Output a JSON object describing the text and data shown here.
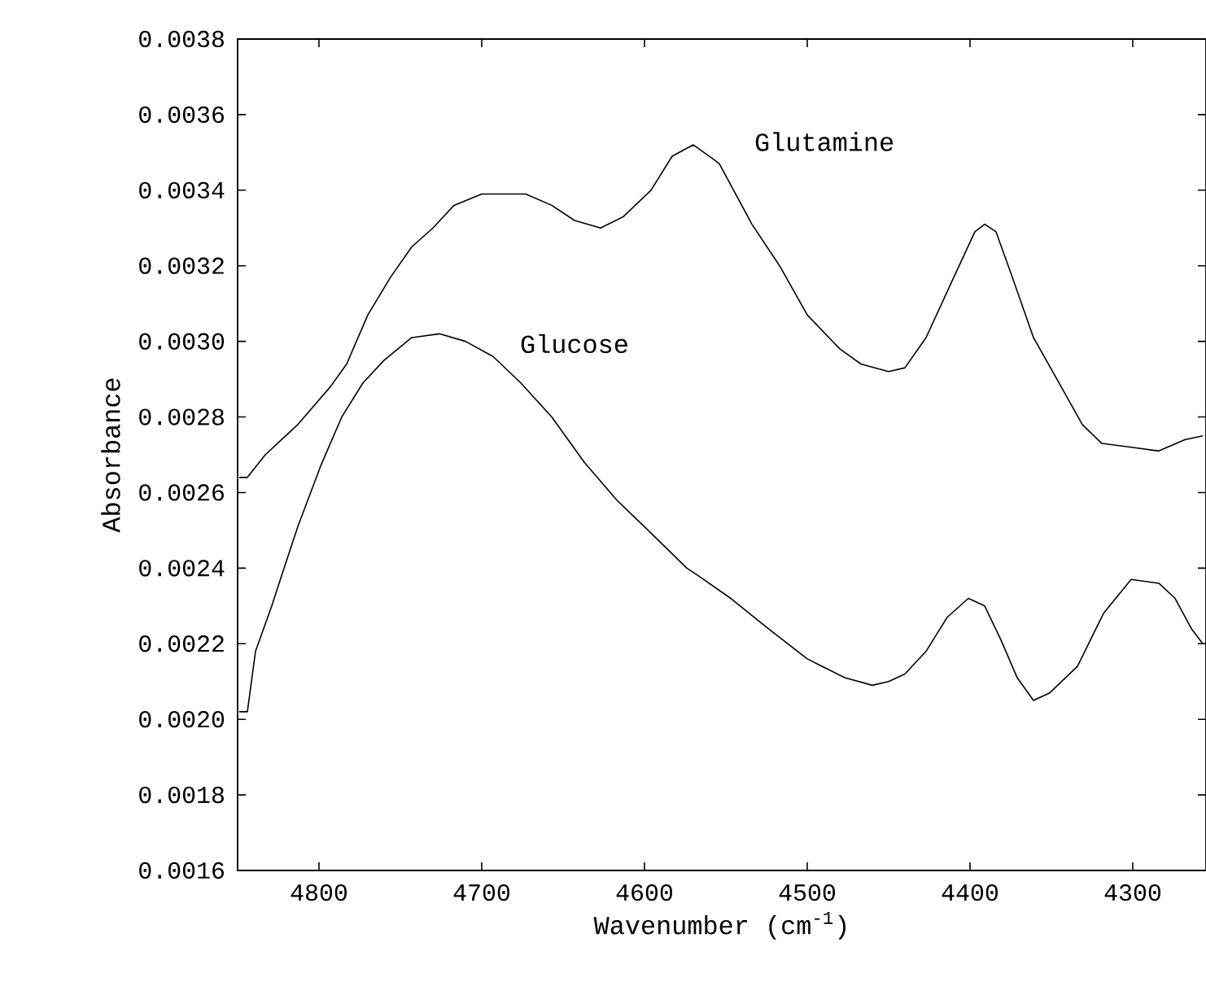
{
  "chart_data": {
    "type": "line",
    "xlabel": "Wavenumber (cm$^{-1}$)",
    "ylabel": "Absorbance",
    "xlim": [
      4850,
      4255
    ],
    "ylim": [
      0.0016,
      0.0038
    ],
    "xticks": [
      4800,
      4700,
      4600,
      4500,
      4400,
      4300
    ],
    "yticks": [
      0.0016,
      0.0018,
      {
        "value": 0.002,
        "label": "0.0020"
      },
      0.0022,
      0.0024,
      0.0026,
      0.0028,
      {
        "value": 0.003,
        "label": "0.0030"
      },
      0.0032,
      0.0034,
      0.0036,
      0.0038
    ],
    "series": [
      {
        "name": "Glutamine",
        "color": "#000000",
        "x": [
          4849,
          4844,
          4833,
          4823,
          4813,
          4803,
          4793,
          4783,
          4770,
          4756,
          4743,
          4730,
          4717,
          4700,
          4673,
          4657,
          4643,
          4627,
          4613,
          4596,
          4583,
          4570,
          4557,
          4554,
          4534,
          4517,
          4500,
          4480,
          4467,
          4450,
          4440,
          4427,
          4411,
          4397,
          4391,
          4384,
          4374,
          4361,
          4344,
          4331,
          4319,
          4301,
          4284,
          4268,
          4257
        ],
        "values": [
          0.00264,
          0.00264,
          0.0027,
          0.00274,
          0.00278,
          0.00283,
          0.00288,
          0.00294,
          0.00307,
          0.00317,
          0.00325,
          0.0033,
          0.00336,
          0.00339,
          0.00339,
          0.00336,
          0.00332,
          0.0033,
          0.00333,
          0.0034,
          0.00349,
          0.00352,
          0.00348,
          0.00347,
          0.00331,
          0.0032,
          0.00307,
          0.00298,
          0.00294,
          0.00292,
          0.00293,
          0.00301,
          0.00316,
          0.00329,
          0.00331,
          0.00329,
          0.00317,
          0.00301,
          0.00288,
          0.00278,
          0.00273,
          0.00272,
          0.00271,
          0.00274,
          0.00275
        ]
      },
      {
        "name": "Glucose",
        "color": "#000000",
        "x": [
          4849,
          4844,
          4839,
          4829,
          4823,
          4813,
          4799,
          4786,
          4773,
          4760,
          4743,
          4726,
          4710,
          4693,
          4676,
          4657,
          4637,
          4617,
          4593,
          4574,
          4567,
          4547,
          4524,
          4500,
          4477,
          4460,
          4450,
          4440,
          4427,
          4414,
          4401,
          4391,
          4381,
          4371,
          4361,
          4351,
          4334,
          4318,
          4301,
          4284,
          4274,
          4264,
          4257
        ],
        "values": [
          0.00202,
          0.00202,
          0.00218,
          0.0023,
          0.00238,
          0.00251,
          0.00267,
          0.0028,
          0.00289,
          0.00295,
          0.00301,
          0.00302,
          0.003,
          0.00296,
          0.00289,
          0.0028,
          0.00268,
          0.00258,
          0.00248,
          0.0024,
          0.00238,
          0.00232,
          0.00224,
          0.00216,
          0.00211,
          0.00209,
          0.0021,
          0.00212,
          0.00218,
          0.00227,
          0.00232,
          0.0023,
          0.00221,
          0.00211,
          0.00205,
          0.00207,
          0.00214,
          0.00228,
          0.00237,
          0.00236,
          0.00232,
          0.00224,
          0.0022
        ]
      }
    ]
  }
}
